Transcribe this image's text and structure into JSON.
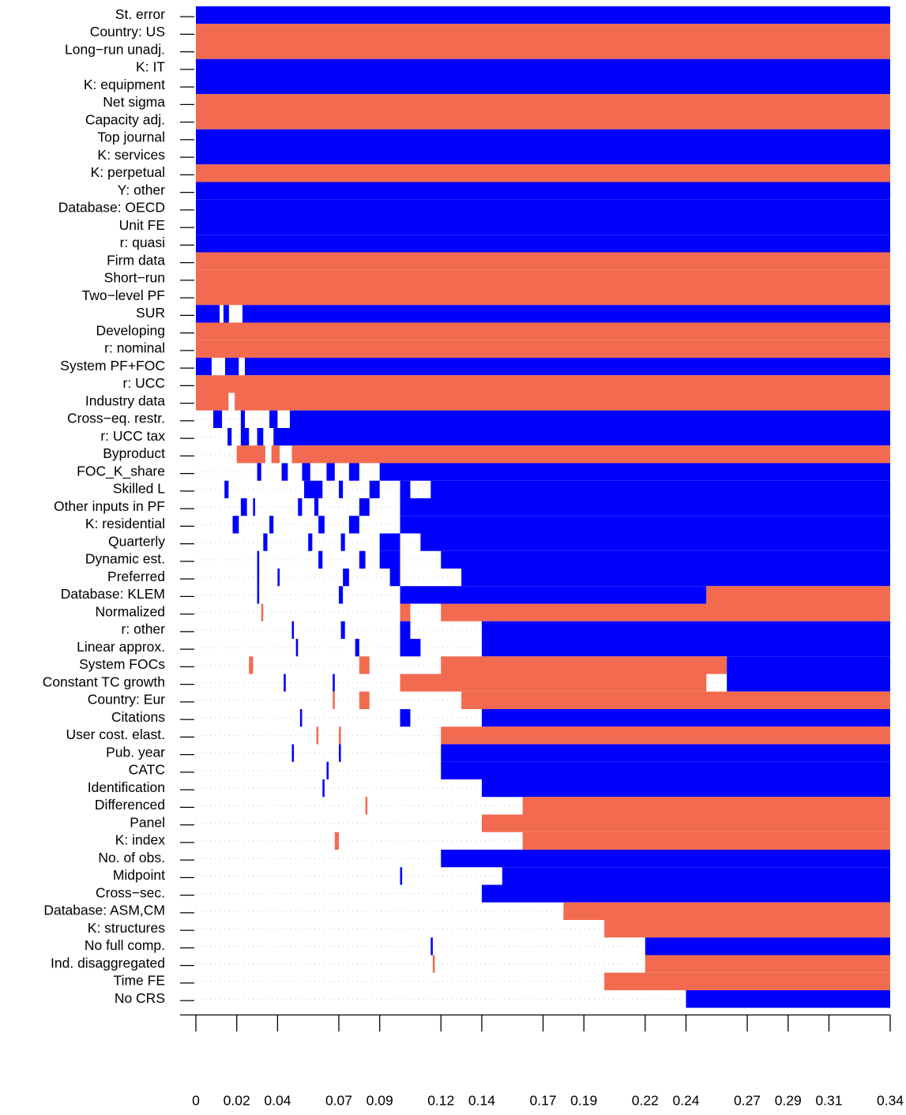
{
  "chart_data": {
    "type": "inclusion-map",
    "color_positive": "#0000ff",
    "color_negative": "#f26b50",
    "xlim": [
      0,
      0.34
    ],
    "xticks": [
      0,
      0.02,
      0.04,
      0.07,
      0.09,
      0.12,
      0.14,
      0.17,
      0.19,
      0.22,
      0.24,
      0.27,
      0.29,
      0.31,
      0.34
    ],
    "rows": [
      {
        "name": "St. error",
        "blocks": [
          [
            0,
            0.34,
            1
          ]
        ]
      },
      {
        "name": "Country: US",
        "blocks": [
          [
            0,
            0.34,
            -1
          ]
        ]
      },
      {
        "name": "Long−run unadj.",
        "blocks": [
          [
            0,
            0.34,
            -1
          ]
        ]
      },
      {
        "name": "K: IT",
        "blocks": [
          [
            0,
            0.34,
            1
          ]
        ]
      },
      {
        "name": "K: equipment",
        "blocks": [
          [
            0,
            0.34,
            1
          ]
        ]
      },
      {
        "name": "Net sigma",
        "blocks": [
          [
            0,
            0.34,
            -1
          ]
        ]
      },
      {
        "name": "Capacity adj.",
        "blocks": [
          [
            0,
            0.34,
            -1
          ]
        ]
      },
      {
        "name": "Top journal",
        "blocks": [
          [
            0,
            0.34,
            1
          ]
        ]
      },
      {
        "name": "K: services",
        "blocks": [
          [
            0,
            0.34,
            1
          ]
        ]
      },
      {
        "name": "K: perpetual",
        "blocks": [
          [
            0,
            0.34,
            -1
          ]
        ]
      },
      {
        "name": "Y: other",
        "blocks": [
          [
            0,
            0.34,
            1
          ]
        ]
      },
      {
        "name": "Database: OECD",
        "blocks": [
          [
            0,
            0.34,
            1
          ]
        ]
      },
      {
        "name": "Unit FE",
        "blocks": [
          [
            0,
            0.34,
            1
          ]
        ]
      },
      {
        "name": "r: quasi",
        "blocks": [
          [
            0,
            0.34,
            1
          ]
        ]
      },
      {
        "name": "Firm data",
        "blocks": [
          [
            0,
            0.34,
            -1
          ]
        ]
      },
      {
        "name": "Short−run",
        "blocks": [
          [
            0,
            0.34,
            -1
          ]
        ]
      },
      {
        "name": "Two−level PF",
        "blocks": [
          [
            0,
            0.34,
            -1
          ]
        ]
      },
      {
        "name": "SUR",
        "blocks": [
          [
            0,
            0.0116,
            1
          ],
          [
            0.0135,
            0.0162,
            1
          ],
          [
            0.0228,
            0.34,
            1
          ]
        ]
      },
      {
        "name": "Developing",
        "blocks": [
          [
            0,
            0.34,
            -1
          ]
        ]
      },
      {
        "name": "r: nominal",
        "blocks": [
          [
            0,
            0.34,
            -1
          ]
        ]
      },
      {
        "name": "System PF+FOC",
        "blocks": [
          [
            0,
            0.0077,
            1
          ],
          [
            0.0143,
            0.021,
            1
          ],
          [
            0.024,
            0.34,
            1
          ]
        ]
      },
      {
        "name": "r: UCC",
        "blocks": [
          [
            0,
            0.34,
            -1
          ]
        ]
      },
      {
        "name": "Industry data",
        "blocks": [
          [
            0,
            0.016,
            -1
          ],
          [
            0.019,
            0.34,
            -1
          ]
        ]
      },
      {
        "name": "Cross−eq. restr.",
        "blocks": [
          [
            0.0085,
            0.0128,
            1
          ],
          [
            0.022,
            0.024,
            1
          ],
          [
            0.036,
            0.04,
            1
          ],
          [
            0.046,
            0.34,
            1
          ]
        ]
      },
      {
        "name": "r: UCC tax",
        "blocks": [
          [
            0.0155,
            0.0175,
            1
          ],
          [
            0.022,
            0.026,
            1
          ],
          [
            0.03,
            0.033,
            1
          ],
          [
            0.038,
            0.34,
            1
          ]
        ]
      },
      {
        "name": "Byproduct",
        "blocks": [
          [
            0.02,
            0.034,
            -1
          ],
          [
            0.037,
            0.041,
            -1
          ],
          [
            0.047,
            0.34,
            -1
          ]
        ]
      },
      {
        "name": "FOC_K_share",
        "blocks": [
          [
            0.03,
            0.032,
            1
          ],
          [
            0.042,
            0.045,
            1
          ],
          [
            0.052,
            0.056,
            1
          ],
          [
            0.064,
            0.068,
            1
          ],
          [
            0.075,
            0.08,
            1
          ],
          [
            0.09,
            0.34,
            1
          ]
        ]
      },
      {
        "name": "Skilled L",
        "blocks": [
          [
            0.014,
            0.016,
            1
          ],
          [
            0.053,
            0.062,
            1
          ],
          [
            0.07,
            0.072,
            1
          ],
          [
            0.085,
            0.09,
            1
          ],
          [
            0.1,
            0.105,
            1
          ],
          [
            0.115,
            0.34,
            1
          ]
        ]
      },
      {
        "name": "Other inputs in PF",
        "blocks": [
          [
            0.022,
            0.025,
            1
          ],
          [
            0.028,
            0.029,
            1
          ],
          [
            0.05,
            0.052,
            1
          ],
          [
            0.058,
            0.06,
            1
          ],
          [
            0.08,
            0.085,
            1
          ],
          [
            0.1,
            0.34,
            1
          ]
        ]
      },
      {
        "name": "K: residential",
        "blocks": [
          [
            0.018,
            0.021,
            1
          ],
          [
            0.036,
            0.038,
            1
          ],
          [
            0.06,
            0.063,
            1
          ],
          [
            0.075,
            0.08,
            1
          ],
          [
            0.1,
            0.34,
            1
          ]
        ]
      },
      {
        "name": "Quarterly",
        "blocks": [
          [
            0.033,
            0.035,
            1
          ],
          [
            0.055,
            0.057,
            1
          ],
          [
            0.071,
            0.073,
            1
          ],
          [
            0.09,
            0.1,
            1
          ],
          [
            0.11,
            0.34,
            1
          ]
        ]
      },
      {
        "name": "Dynamic est.",
        "blocks": [
          [
            0.03,
            0.031,
            1
          ],
          [
            0.06,
            0.062,
            1
          ],
          [
            0.08,
            0.083,
            1
          ],
          [
            0.09,
            0.1,
            1
          ],
          [
            0.12,
            0.34,
            1
          ]
        ]
      },
      {
        "name": "Preferred",
        "blocks": [
          [
            0.03,
            0.031,
            1
          ],
          [
            0.04,
            0.041,
            1
          ],
          [
            0.072,
            0.075,
            1
          ],
          [
            0.095,
            0.1,
            1
          ],
          [
            0.13,
            0.34,
            1
          ]
        ]
      },
      {
        "name": "Database: KLEM",
        "blocks": [
          [
            0.03,
            0.031,
            1
          ],
          [
            0.07,
            0.072,
            1
          ],
          [
            0.1,
            0.25,
            1
          ],
          [
            0.25,
            0.34,
            -1
          ]
        ]
      },
      {
        "name": "Normalized",
        "blocks": [
          [
            0.032,
            0.033,
            -1
          ],
          [
            0.1,
            0.105,
            -1
          ],
          [
            0.12,
            0.34,
            -1
          ]
        ]
      },
      {
        "name": "r: other",
        "blocks": [
          [
            0.047,
            0.048,
            1
          ],
          [
            0.071,
            0.073,
            1
          ],
          [
            0.1,
            0.105,
            1
          ],
          [
            0.14,
            0.34,
            1
          ]
        ]
      },
      {
        "name": "Linear approx.",
        "blocks": [
          [
            0.049,
            0.05,
            1
          ],
          [
            0.078,
            0.08,
            1
          ],
          [
            0.1,
            0.11,
            1
          ],
          [
            0.14,
            0.34,
            1
          ]
        ]
      },
      {
        "name": "System FOCs",
        "blocks": [
          [
            0.026,
            0.028,
            -1
          ],
          [
            0.08,
            0.085,
            -1
          ],
          [
            0.12,
            0.26,
            -1
          ],
          [
            0.26,
            0.34,
            1
          ]
        ]
      },
      {
        "name": "Constant TC growth",
        "blocks": [
          [
            0.043,
            0.044,
            1
          ],
          [
            0.067,
            0.068,
            1
          ],
          [
            0.1,
            0.25,
            -1
          ],
          [
            0.26,
            0.34,
            1
          ]
        ]
      },
      {
        "name": "Country: Eur",
        "blocks": [
          [
            0.067,
            0.068,
            -1
          ],
          [
            0.08,
            0.085,
            -1
          ],
          [
            0.13,
            0.34,
            -1
          ]
        ]
      },
      {
        "name": "Citations",
        "blocks": [
          [
            0.051,
            0.052,
            1
          ],
          [
            0.1,
            0.105,
            1
          ],
          [
            0.14,
            0.34,
            1
          ]
        ]
      },
      {
        "name": "User cost. elast.",
        "blocks": [
          [
            0.059,
            0.06,
            -1
          ],
          [
            0.07,
            0.071,
            -1
          ],
          [
            0.12,
            0.34,
            -1
          ]
        ]
      },
      {
        "name": "Pub. year",
        "blocks": [
          [
            0.047,
            0.048,
            1
          ],
          [
            0.07,
            0.071,
            1
          ],
          [
            0.12,
            0.34,
            1
          ]
        ]
      },
      {
        "name": "CATC",
        "blocks": [
          [
            0.064,
            0.065,
            1
          ],
          [
            0.12,
            0.34,
            1
          ]
        ]
      },
      {
        "name": "Identification",
        "blocks": [
          [
            0.062,
            0.063,
            1
          ],
          [
            0.14,
            0.34,
            1
          ]
        ]
      },
      {
        "name": "Differenced",
        "blocks": [
          [
            0.083,
            0.084,
            -1
          ],
          [
            0.16,
            0.34,
            -1
          ]
        ]
      },
      {
        "name": "Panel",
        "blocks": [
          [
            0.14,
            0.34,
            -1
          ]
        ]
      },
      {
        "name": "K: index",
        "blocks": [
          [
            0.068,
            0.07,
            -1
          ],
          [
            0.16,
            0.34,
            -1
          ]
        ]
      },
      {
        "name": "No. of obs.",
        "blocks": [
          [
            0.12,
            0.34,
            1
          ]
        ]
      },
      {
        "name": "Midpoint",
        "blocks": [
          [
            0.1,
            0.101,
            1
          ],
          [
            0.15,
            0.34,
            1
          ]
        ]
      },
      {
        "name": "Cross−sec.",
        "blocks": [
          [
            0.14,
            0.34,
            1
          ]
        ]
      },
      {
        "name": "Database: ASM,CM",
        "blocks": [
          [
            0.18,
            0.34,
            -1
          ]
        ]
      },
      {
        "name": "K: structures",
        "blocks": [
          [
            0.2,
            0.34,
            -1
          ]
        ]
      },
      {
        "name": "No full comp.",
        "blocks": [
          [
            0.115,
            0.116,
            1
          ],
          [
            0.22,
            0.34,
            1
          ]
        ]
      },
      {
        "name": "Ind. disaggregated",
        "blocks": [
          [
            0.116,
            0.117,
            -1
          ],
          [
            0.22,
            0.34,
            -1
          ]
        ]
      },
      {
        "name": "Time FE",
        "blocks": [
          [
            0.2,
            0.34,
            -1
          ]
        ]
      },
      {
        "name": "No CRS",
        "blocks": [
          [
            0.24,
            0.34,
            1
          ]
        ]
      }
    ]
  }
}
